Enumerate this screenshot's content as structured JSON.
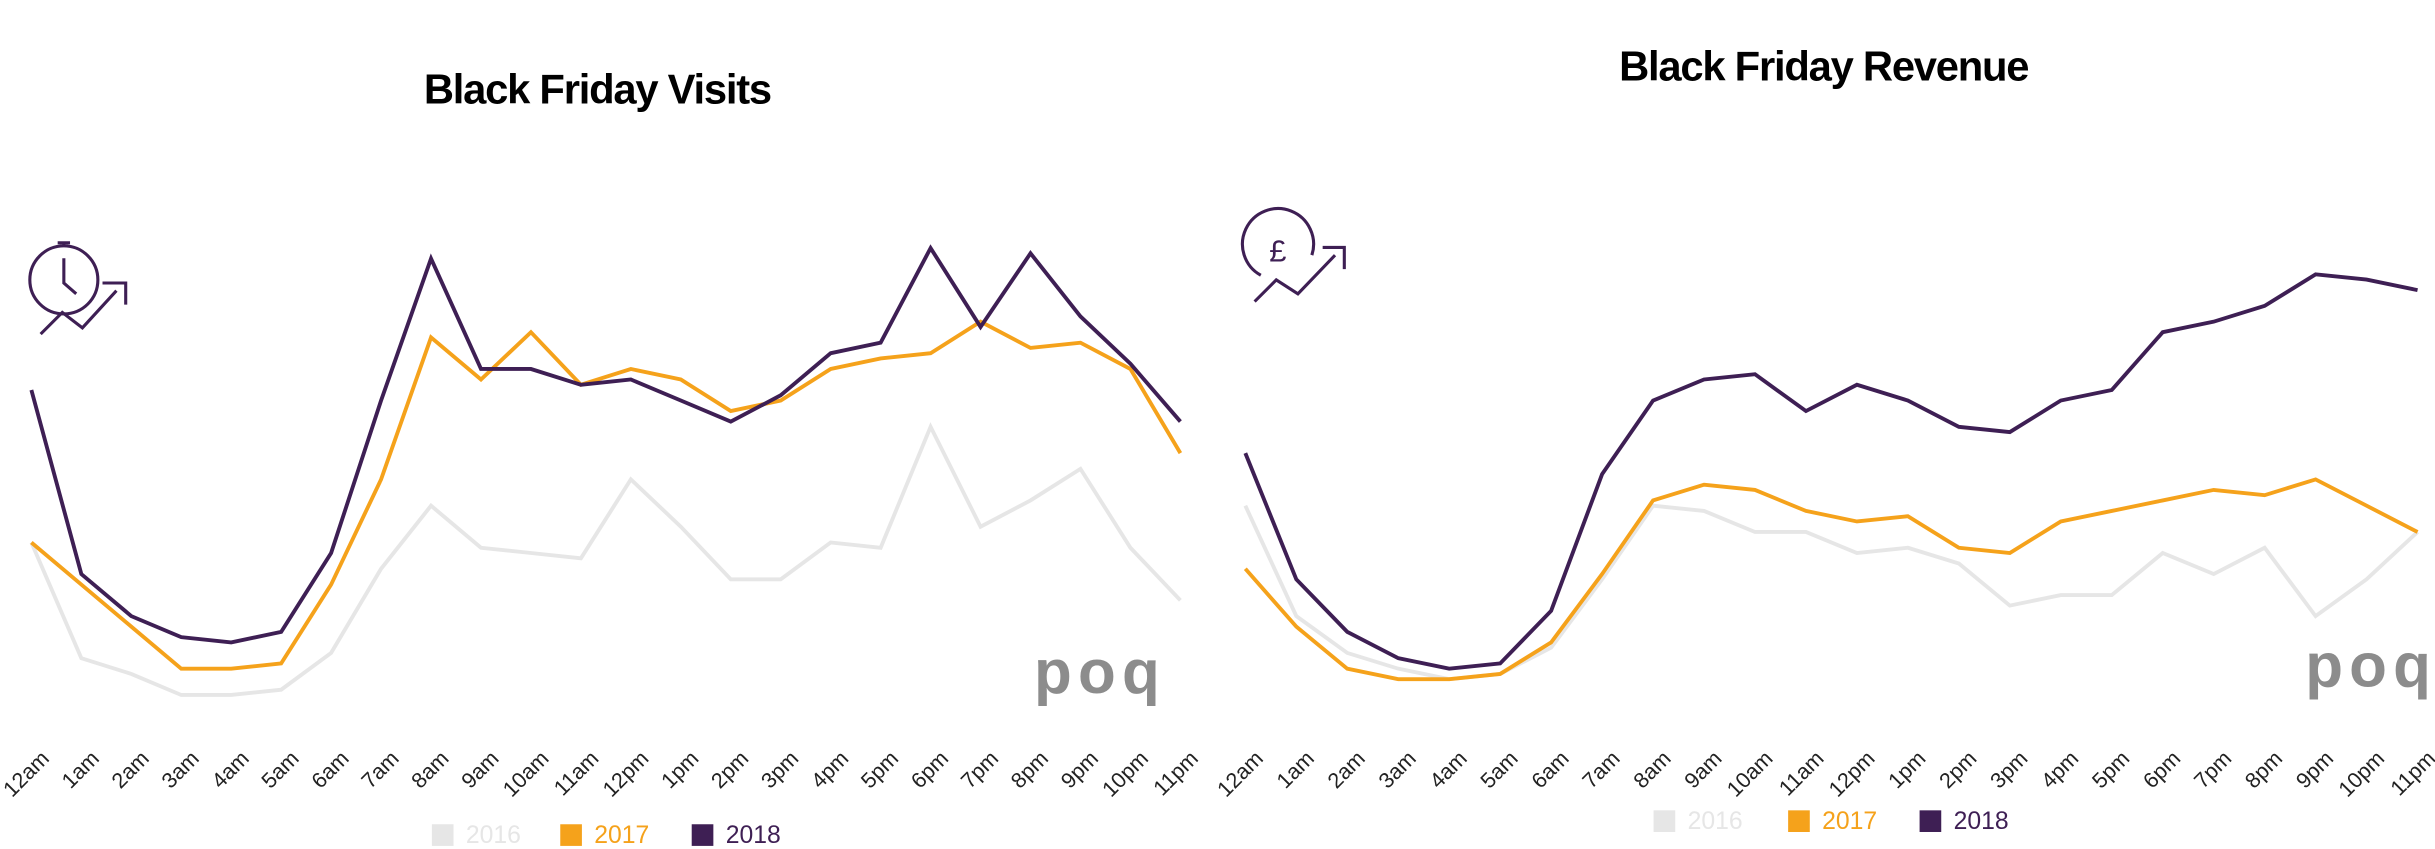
{
  "chart_data": [
    {
      "type": "line",
      "title": "Black Friday Visits",
      "logo": "poq",
      "categories": [
        "12am",
        "1am",
        "2am",
        "3am",
        "4am",
        "5am",
        "6am",
        "7am",
        "8am",
        "9am",
        "10am",
        "11am",
        "12pm",
        "1pm",
        "2pm",
        "3pm",
        "4pm",
        "5pm",
        "6pm",
        "7pm",
        "8pm",
        "9pm",
        "10pm",
        "11pm"
      ],
      "ylim": [
        0,
        100
      ],
      "legend": "bottom",
      "series": [
        {
          "name": "2016",
          "color": "#e6e6e6",
          "values": [
            38,
            16,
            13,
            9,
            9,
            10,
            17,
            33,
            45,
            37,
            36,
            35,
            50,
            41,
            31,
            31,
            38,
            37,
            60,
            41,
            46,
            52,
            37,
            27
          ]
        },
        {
          "name": "2017",
          "color": "#f5a21b",
          "values": [
            38,
            30,
            22,
            14,
            14,
            15,
            30,
            50,
            77,
            69,
            78,
            68,
            71,
            69,
            63,
            65,
            71,
            73,
            74,
            80,
            75,
            76,
            71,
            55
          ]
        },
        {
          "name": "2018",
          "color": "#3e1f54",
          "values": [
            67,
            32,
            24,
            20,
            19,
            21,
            36,
            65,
            92,
            71,
            71,
            68,
            69,
            65,
            61,
            66,
            74,
            76,
            94,
            79,
            93,
            81,
            72,
            61
          ]
        }
      ]
    },
    {
      "type": "line",
      "title": "Black Friday Revenue",
      "logo": "poq",
      "categories": [
        "12am",
        "1am",
        "2am",
        "3am",
        "4am",
        "5am",
        "6am",
        "7am",
        "8am",
        "9am",
        "10am",
        "11am",
        "12pm",
        "1pm",
        "2pm",
        "3pm",
        "4pm",
        "5pm",
        "6pm",
        "7pm",
        "8pm",
        "9pm",
        "10pm",
        "11pm"
      ],
      "ylim": [
        0,
        100
      ],
      "legend": "bottom",
      "series": [
        {
          "name": "2016",
          "color": "#e6e6e6",
          "values": [
            45,
            24,
            17,
            14,
            12,
            13,
            18,
            31,
            45,
            44,
            40,
            40,
            36,
            37,
            34,
            26,
            28,
            28,
            36,
            32,
            37,
            24,
            31,
            40
          ]
        },
        {
          "name": "2017",
          "color": "#f5a21b",
          "values": [
            33,
            22,
            14,
            12,
            12,
            13,
            19,
            32,
            46,
            49,
            48,
            44,
            42,
            43,
            37,
            36,
            42,
            44,
            46,
            48,
            47,
            50,
            45,
            40
          ]
        },
        {
          "name": "2018",
          "color": "#3e1f54",
          "values": [
            55,
            31,
            21,
            16,
            14,
            15,
            25,
            51,
            65,
            69,
            70,
            63,
            68,
            65,
            60,
            59,
            65,
            67,
            78,
            80,
            83,
            89,
            88,
            86
          ]
        }
      ]
    }
  ]
}
